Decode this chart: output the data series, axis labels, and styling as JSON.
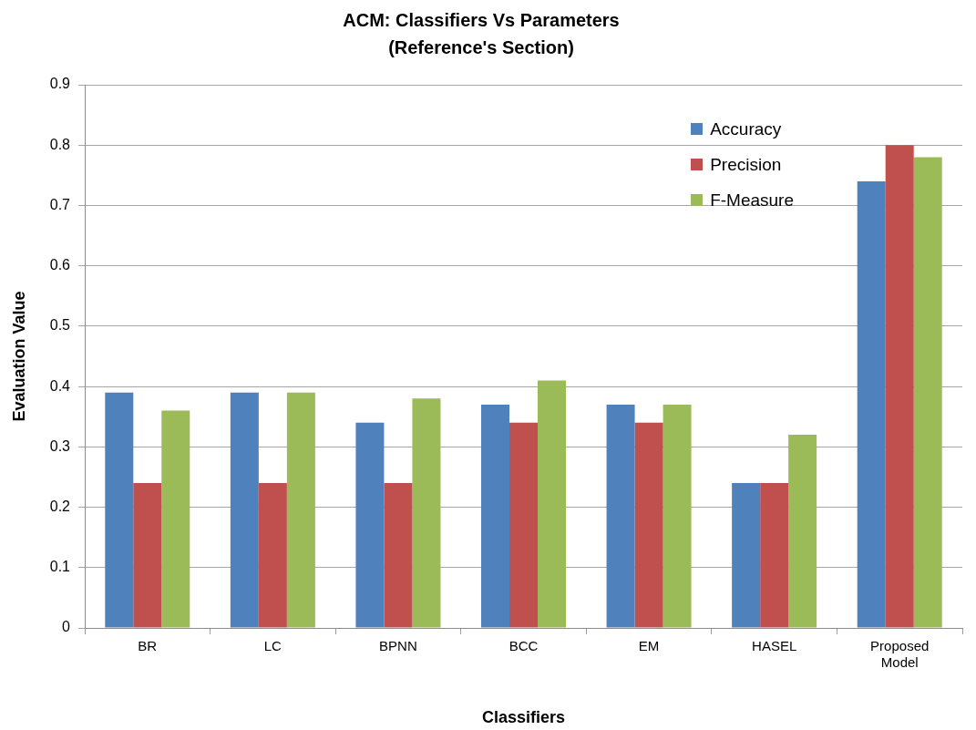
{
  "chart_data": {
    "type": "bar",
    "title": "ACM: Classifiers Vs Parameters\n(Reference's Section)",
    "xlabel": "Classifiers",
    "ylabel": "Evaluation Value",
    "categories": [
      "BR",
      "LC",
      "BPNN",
      "BCC",
      "EM",
      "HASEL",
      "Proposed Model"
    ],
    "series": [
      {
        "name": "Accuracy",
        "color": "#4f81bd",
        "values": [
          0.39,
          0.39,
          0.34,
          0.37,
          0.37,
          0.24,
          0.74
        ]
      },
      {
        "name": "Precision",
        "color": "#c0504d",
        "values": [
          0.24,
          0.24,
          0.24,
          0.34,
          0.34,
          0.24,
          0.8
        ]
      },
      {
        "name": "F-Measure",
        "color": "#9bbb59",
        "values": [
          0.36,
          0.39,
          0.38,
          0.41,
          0.37,
          0.32,
          0.78
        ]
      }
    ],
    "ylim": [
      0,
      0.9
    ],
    "yticks": [
      0,
      0.1,
      0.2,
      0.3,
      0.4,
      0.5,
      0.6,
      0.7,
      0.8,
      0.9
    ],
    "grid": "y",
    "legend": "top right"
  }
}
